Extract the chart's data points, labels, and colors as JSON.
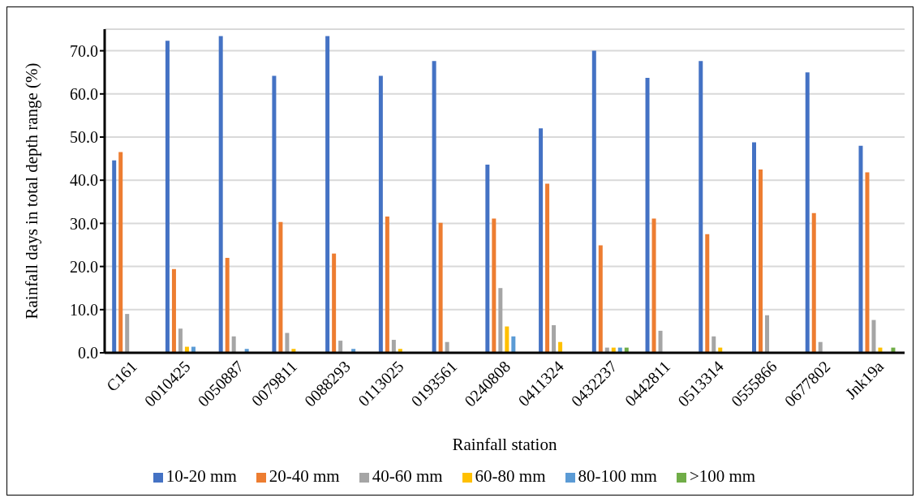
{
  "chart_data": {
    "type": "bar",
    "xlabel": "Rainfall station",
    "ylabel": "Rainfall days in total depth range (%)",
    "categories": [
      "C161",
      "0010425",
      "0050887",
      "0079811",
      "0088293",
      "0113025",
      "0193561",
      "0240808",
      "0411324",
      "0432237",
      "0442811",
      "0513314",
      "0555866",
      "0677802",
      "Jnk19a"
    ],
    "series": [
      {
        "name": "10-20 mm",
        "color": "#4472c4",
        "values": [
          44.6,
          72.3,
          73.4,
          64.2,
          73.4,
          64.2,
          67.6,
          43.6,
          52.0,
          70.0,
          63.7,
          67.6,
          48.8,
          65.0,
          48.0
        ]
      },
      {
        "name": "20-40 mm",
        "color": "#ed7d31",
        "values": [
          46.5,
          19.4,
          22.0,
          30.3,
          23.0,
          31.6,
          30.1,
          31.1,
          39.2,
          24.9,
          31.1,
          27.5,
          42.5,
          32.4,
          41.8
        ]
      },
      {
        "name": "40-60 mm",
        "color": "#a5a5a5",
        "values": [
          9.0,
          5.6,
          3.8,
          4.6,
          2.8,
          3.0,
          2.5,
          15.0,
          6.4,
          1.2,
          5.1,
          3.8,
          8.7,
          2.5,
          7.6
        ]
      },
      {
        "name": "60-80 mm",
        "color": "#ffc000",
        "values": [
          0,
          1.4,
          0,
          0.9,
          0,
          0.9,
          0,
          6.1,
          2.5,
          1.2,
          0,
          1.2,
          0,
          0,
          1.2
        ]
      },
      {
        "name": "80-100 mm",
        "color": "#5b9bd5",
        "values": [
          0,
          1.4,
          0.9,
          0,
          0.9,
          0,
          0,
          3.8,
          0,
          1.2,
          0,
          0,
          0,
          0,
          0
        ]
      },
      {
        "name": ">100 mm",
        "color": "#70ad47",
        "values": [
          0,
          0,
          0,
          0,
          0,
          0,
          0,
          0,
          0,
          1.2,
          0,
          0,
          0,
          0,
          1.2
        ]
      }
    ],
    "ylim": [
      0,
      75
    ],
    "yticks": [
      {
        "value": 0,
        "label": "0.0"
      },
      {
        "value": 10,
        "label": "10.0"
      },
      {
        "value": 20,
        "label": "20.0"
      },
      {
        "value": 30,
        "label": "30.0"
      },
      {
        "value": 40,
        "label": "40.0"
      },
      {
        "value": 50,
        "label": "50.0"
      },
      {
        "value": 60,
        "label": "60.0"
      },
      {
        "value": 70,
        "label": "70.0"
      }
    ],
    "grid": "y",
    "legend": "bottom"
  }
}
